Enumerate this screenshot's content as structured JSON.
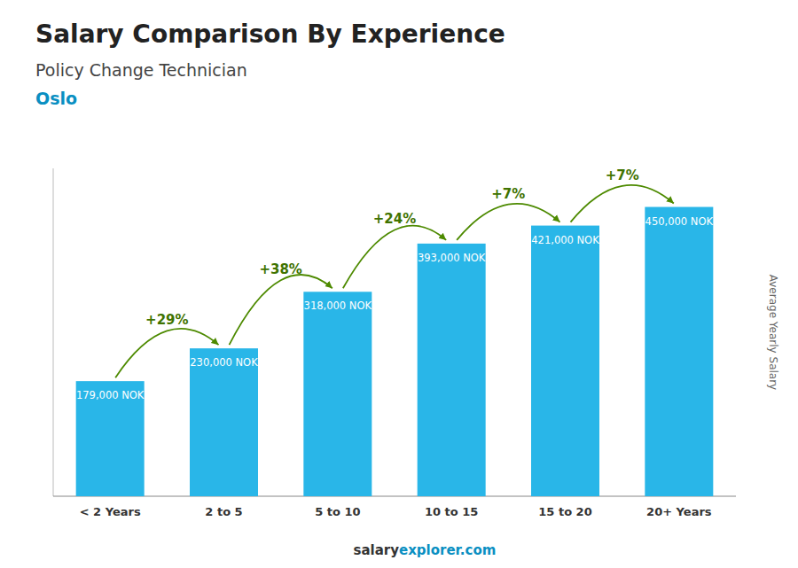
{
  "chart_data": {
    "type": "bar",
    "title": "Salary Comparison By Experience",
    "subtitle": "Policy Change Technician",
    "location": "Oslo",
    "y_label": "Average Yearly Salary",
    "footer": [
      "salary",
      "explorer.com"
    ],
    "categories": [
      "< 2 Years",
      "2 to 5",
      "5 to 10",
      "10 to 15",
      "15 to 20",
      "20+ Years"
    ],
    "values": [
      179000,
      230000,
      318000,
      393000,
      421000,
      450000
    ],
    "value_labels": [
      "179,000 NOK",
      "230,000 NOK",
      "318,000 NOK",
      "393,000 NOK",
      "421,000 NOK",
      "450,000 NOK"
    ],
    "data_labels": true,
    "annotations": [
      "+29%",
      "+38%",
      "+24%",
      "+7%",
      "+7%"
    ],
    "color": "#29b6e8",
    "ylim": [
      0,
      510000
    ],
    "tick_labels": "x",
    "grid": false
  }
}
